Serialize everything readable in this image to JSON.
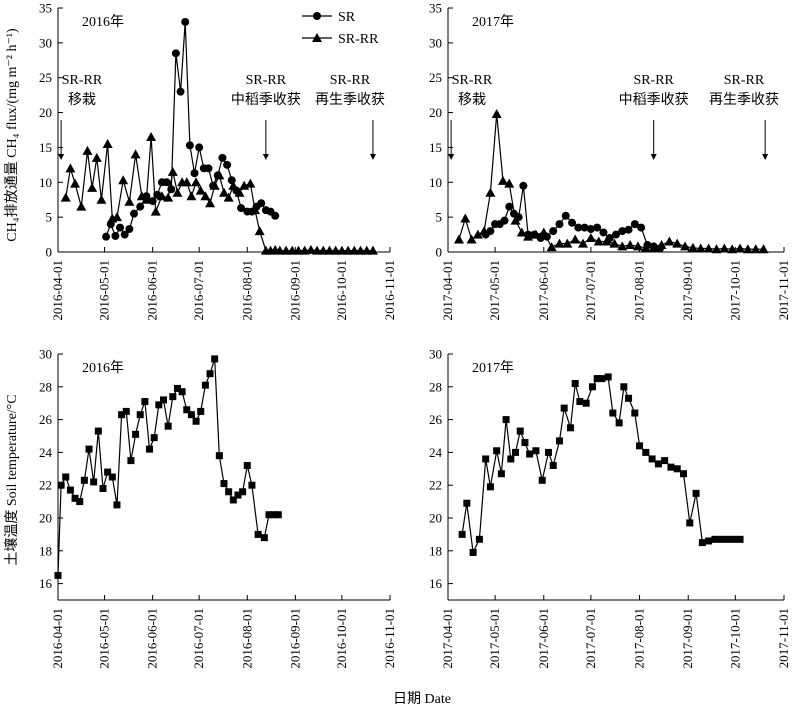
{
  "figure": {
    "ylabel_top": "CH₄排放通量  CH₄ flux/(mg m⁻² h⁻¹)",
    "ylabel_bottom": "土壤温度 Soil temperature/°C",
    "xlabel": "日期 Date",
    "marker_color": "#000000"
  },
  "chart_data": [
    {
      "type": "line",
      "title": "2016年",
      "ylim": [
        0,
        35
      ],
      "yticks": [
        0,
        5,
        10,
        15,
        20,
        25,
        30,
        35
      ],
      "xlim": [
        "2016-04-01",
        "2016-11-01"
      ],
      "xticks": [
        "2016-04-01",
        "2016-05-01",
        "2016-06-01",
        "2016-07-01",
        "2016-08-01",
        "2016-09-01",
        "2016-10-01",
        "2016-11-01"
      ],
      "legend": {
        "position": "top-center",
        "entries": [
          {
            "name": "SR",
            "marker": "circle"
          },
          {
            "name": "SR-RR",
            "marker": "triangle"
          }
        ]
      },
      "series": [
        {
          "name": "SR",
          "marker": "circle",
          "x": [
            "2016-05-02",
            "2016-05-05",
            "2016-05-08",
            "2016-05-11",
            "2016-05-14",
            "2016-05-17",
            "2016-05-20",
            "2016-05-24",
            "2016-05-28",
            "2016-06-01",
            "2016-06-04",
            "2016-06-07",
            "2016-06-10",
            "2016-06-13",
            "2016-06-16",
            "2016-06-19",
            "2016-06-22",
            "2016-06-25",
            "2016-06-28",
            "2016-07-01",
            "2016-07-04",
            "2016-07-07",
            "2016-07-10",
            "2016-07-13",
            "2016-07-16",
            "2016-07-19",
            "2016-07-22",
            "2016-07-25",
            "2016-07-28",
            "2016-08-01",
            "2016-08-04",
            "2016-08-07",
            "2016-08-10",
            "2016-08-13",
            "2016-08-16",
            "2016-08-19"
          ],
          "y": [
            2.2,
            4,
            2.3,
            3.5,
            2.5,
            3.3,
            5.5,
            6.5,
            8,
            7.3,
            8.2,
            10,
            10,
            9,
            28.5,
            23,
            33,
            15.3,
            11.3,
            15,
            12,
            12,
            9.5,
            11,
            13.5,
            12.5,
            10.3,
            8.8,
            6.3,
            5.8,
            5.8,
            6.5,
            7,
            6,
            5.8,
            5.2
          ]
        },
        {
          "name": "SR-RR",
          "marker": "triangle",
          "x": [
            "2016-04-06",
            "2016-04-09",
            "2016-04-12",
            "2016-04-16",
            "2016-04-20",
            "2016-04-23",
            "2016-04-26",
            "2016-04-29",
            "2016-05-03",
            "2016-05-06",
            "2016-05-09",
            "2016-05-13",
            "2016-05-17",
            "2016-05-21",
            "2016-05-25",
            "2016-05-28",
            "2016-05-31",
            "2016-06-03",
            "2016-06-07",
            "2016-06-11",
            "2016-06-14",
            "2016-06-17",
            "2016-06-20",
            "2016-06-23",
            "2016-06-26",
            "2016-06-29",
            "2016-07-02",
            "2016-07-05",
            "2016-07-08",
            "2016-07-11",
            "2016-07-14",
            "2016-07-17",
            "2016-07-20",
            "2016-07-23",
            "2016-07-27",
            "2016-07-30",
            "2016-08-03",
            "2016-08-06",
            "2016-08-09",
            "2016-08-13",
            "2016-08-16",
            "2016-08-19",
            "2016-08-22",
            "2016-08-26",
            "2016-08-30",
            "2016-09-03",
            "2016-09-07",
            "2016-09-11",
            "2016-09-15",
            "2016-09-19",
            "2016-09-23",
            "2016-09-27",
            "2016-10-01",
            "2016-10-05",
            "2016-10-09",
            "2016-10-13",
            "2016-10-17",
            "2016-10-21"
          ],
          "y": [
            7.8,
            12,
            9.8,
            6.5,
            14.5,
            9.2,
            13.5,
            7.5,
            15.5,
            4.8,
            5,
            10.3,
            7.2,
            14,
            8,
            7.5,
            16.5,
            5.8,
            8,
            7.8,
            11.5,
            8.5,
            10,
            10,
            8,
            10,
            8.8,
            8,
            7,
            9.5,
            11,
            8.5,
            7.8,
            9.5,
            8.5,
            9.5,
            9.8,
            6,
            3,
            0.2,
            0.2,
            0.3,
            0.2,
            0.2,
            0.2,
            0.2,
            0.2,
            0.3,
            0.2,
            0.2,
            0.2,
            0.2,
            0.2,
            0.2,
            0.2,
            0.2,
            0.2,
            0.2
          ]
        }
      ],
      "annotations": [
        {
          "text": [
            "SR-RR",
            "移栽"
          ],
          "date": "2016-04-03"
        },
        {
          "text": [
            "SR-RR",
            "中稻季收获"
          ],
          "date": "2016-08-13"
        },
        {
          "text": [
            "SR-RR",
            "再生季收获"
          ],
          "date": "2016-10-21"
        }
      ]
    },
    {
      "type": "line",
      "title": "2017年",
      "ylim": [
        0,
        35
      ],
      "yticks": [
        0,
        5,
        10,
        15,
        20,
        25,
        30,
        35
      ],
      "xlim": [
        "2017-04-01",
        "2017-11-01"
      ],
      "xticks": [
        "2017-04-01",
        "2017-05-01",
        "2017-06-01",
        "2017-07-01",
        "2017-08-01",
        "2017-09-01",
        "2017-10-01",
        "2017-11-01"
      ],
      "series": [
        {
          "name": "SR",
          "marker": "circle",
          "x": [
            "2017-04-25",
            "2017-04-28",
            "2017-05-01",
            "2017-05-04",
            "2017-05-07",
            "2017-05-10",
            "2017-05-13",
            "2017-05-16",
            "2017-05-19",
            "2017-05-22",
            "2017-05-26",
            "2017-05-30",
            "2017-06-03",
            "2017-06-07",
            "2017-06-11",
            "2017-06-15",
            "2017-06-19",
            "2017-06-23",
            "2017-06-27",
            "2017-07-01",
            "2017-07-05",
            "2017-07-09",
            "2017-07-13",
            "2017-07-17",
            "2017-07-21",
            "2017-07-25",
            "2017-07-29",
            "2017-08-02",
            "2017-08-06",
            "2017-08-10",
            "2017-08-14"
          ],
          "y": [
            2.5,
            3,
            4,
            4,
            4.5,
            6.5,
            5.5,
            5,
            9.5,
            2.5,
            2.5,
            2,
            2.2,
            3,
            4,
            5.2,
            4.2,
            3.5,
            3.5,
            3.3,
            3.5,
            2.8,
            2,
            2.5,
            3,
            3.2,
            4,
            3.5,
            1,
            0.8,
            0.5
          ]
        },
        {
          "name": "SR-RR",
          "marker": "triangle",
          "x": [
            "2017-04-08",
            "2017-04-12",
            "2017-04-16",
            "2017-04-20",
            "2017-04-24",
            "2017-04-28",
            "2017-05-02",
            "2017-05-06",
            "2017-05-10",
            "2017-05-14",
            "2017-05-18",
            "2017-05-22",
            "2017-05-27",
            "2017-06-01",
            "2017-06-06",
            "2017-06-11",
            "2017-06-16",
            "2017-06-21",
            "2017-06-26",
            "2017-07-01",
            "2017-07-06",
            "2017-07-11",
            "2017-07-16",
            "2017-07-21",
            "2017-07-26",
            "2017-07-31",
            "2017-08-05",
            "2017-08-10",
            "2017-08-15",
            "2017-08-20",
            "2017-08-25",
            "2017-08-30",
            "2017-09-04",
            "2017-09-09",
            "2017-09-14",
            "2017-09-19",
            "2017-09-24",
            "2017-09-29",
            "2017-10-04",
            "2017-10-09",
            "2017-10-14",
            "2017-10-19"
          ],
          "y": [
            1.8,
            4.8,
            1.8,
            2.5,
            3,
            8.5,
            19.8,
            10.2,
            9.8,
            4.5,
            2.8,
            2.2,
            2.5,
            2.8,
            0.7,
            1.2,
            1.2,
            1.8,
            1.2,
            2,
            1.5,
            1.5,
            1.2,
            0.8,
            1,
            0.8,
            0.6,
            0.6,
            1,
            1.5,
            1.2,
            0.8,
            0.6,
            0.5,
            0.5,
            0.4,
            0.5,
            0.4,
            0.5,
            0.4,
            0.4,
            0.4
          ]
        }
      ],
      "annotations": [
        {
          "text": [
            "SR-RR",
            "移栽"
          ],
          "date": "2017-04-03"
        },
        {
          "text": [
            "SR-RR",
            "中稻季收获"
          ],
          "date": "2017-08-10"
        },
        {
          "text": [
            "SR-RR",
            "再生季收获"
          ],
          "date": "2017-10-20"
        }
      ]
    },
    {
      "type": "line",
      "title": "2016年",
      "ylim": [
        15,
        30
      ],
      "yticks": [
        16,
        18,
        20,
        22,
        24,
        26,
        28,
        30
      ],
      "xlim": [
        "2016-04-01",
        "2016-11-01"
      ],
      "xticks": [
        "2016-04-01",
        "2016-05-01",
        "2016-06-01",
        "2016-07-01",
        "2016-08-01",
        "2016-09-01",
        "2016-10-01",
        "2016-11-01"
      ],
      "series": [
        {
          "name": "Soil temperature",
          "marker": "square",
          "x": [
            "2016-04-01",
            "2016-04-03",
            "2016-04-06",
            "2016-04-09",
            "2016-04-12",
            "2016-04-15",
            "2016-04-18",
            "2016-04-21",
            "2016-04-24",
            "2016-04-27",
            "2016-04-30",
            "2016-05-03",
            "2016-05-06",
            "2016-05-09",
            "2016-05-12",
            "2016-05-15",
            "2016-05-18",
            "2016-05-21",
            "2016-05-24",
            "2016-05-27",
            "2016-05-30",
            "2016-06-02",
            "2016-06-05",
            "2016-06-08",
            "2016-06-11",
            "2016-06-14",
            "2016-06-17",
            "2016-06-20",
            "2016-06-23",
            "2016-06-26",
            "2016-06-29",
            "2016-07-02",
            "2016-07-05",
            "2016-07-08",
            "2016-07-11",
            "2016-07-14",
            "2016-07-17",
            "2016-07-20",
            "2016-07-23",
            "2016-07-26",
            "2016-07-29",
            "2016-08-01",
            "2016-08-04",
            "2016-08-08",
            "2016-08-12",
            "2016-08-15",
            "2016-08-18",
            "2016-08-21"
          ],
          "y": [
            16.5,
            22,
            22.5,
            21.7,
            21.2,
            21,
            22.3,
            24.2,
            22.2,
            25.3,
            21.8,
            22.8,
            22.5,
            20.8,
            26.3,
            26.5,
            23.5,
            25.1,
            26.3,
            27.1,
            24.2,
            24.9,
            26.9,
            27.2,
            25.6,
            27.4,
            27.9,
            27.7,
            26.6,
            26.3,
            25.9,
            26.5,
            28.1,
            28.8,
            29.7,
            23.8,
            22.1,
            21.6,
            21.1,
            21.4,
            21.6,
            23.2,
            22,
            19,
            18.8,
            20.2,
            20.2,
            20.2
          ]
        }
      ]
    },
    {
      "type": "line",
      "title": "2017年",
      "ylim": [
        15,
        30
      ],
      "yticks": [
        16,
        18,
        20,
        22,
        24,
        26,
        28,
        30
      ],
      "xlim": [
        "2017-04-01",
        "2017-11-01"
      ],
      "xticks": [
        "2017-04-01",
        "2017-05-01",
        "2017-06-01",
        "2017-07-01",
        "2017-08-01",
        "2017-09-01",
        "2017-10-01",
        "2017-11-01"
      ],
      "series": [
        {
          "name": "Soil temperature",
          "marker": "square",
          "x": [
            "2017-04-10",
            "2017-04-13",
            "2017-04-17",
            "2017-04-21",
            "2017-04-25",
            "2017-04-28",
            "2017-05-02",
            "2017-05-05",
            "2017-05-08",
            "2017-05-11",
            "2017-05-14",
            "2017-05-17",
            "2017-05-20",
            "2017-05-23",
            "2017-05-27",
            "2017-05-31",
            "2017-06-04",
            "2017-06-07",
            "2017-06-11",
            "2017-06-14",
            "2017-06-18",
            "2017-06-21",
            "2017-06-24",
            "2017-06-28",
            "2017-07-02",
            "2017-07-05",
            "2017-07-08",
            "2017-07-12",
            "2017-07-15",
            "2017-07-19",
            "2017-07-22",
            "2017-07-25",
            "2017-07-29",
            "2017-08-01",
            "2017-08-05",
            "2017-08-09",
            "2017-08-13",
            "2017-08-17",
            "2017-08-21",
            "2017-08-25",
            "2017-08-29",
            "2017-09-02",
            "2017-09-06",
            "2017-09-10",
            "2017-09-14",
            "2017-09-18",
            "2017-09-22",
            "2017-09-26",
            "2017-09-30",
            "2017-10-04"
          ],
          "y": [
            19,
            20.9,
            17.9,
            18.7,
            23.6,
            21.9,
            24.1,
            22.7,
            26,
            23.6,
            24,
            25.3,
            24.6,
            23.9,
            24.1,
            22.3,
            24,
            23.2,
            24.7,
            26.7,
            25.5,
            28.2,
            27.1,
            27,
            28,
            28.5,
            28.5,
            28.6,
            26.4,
            25.8,
            28,
            27.3,
            26.4,
            24.4,
            24,
            23.6,
            23.3,
            23.5,
            23.1,
            23,
            22.7,
            19.7,
            21.5,
            18.5,
            18.6,
            18.7,
            18.7,
            18.7,
            18.7,
            18.7
          ]
        }
      ]
    }
  ]
}
